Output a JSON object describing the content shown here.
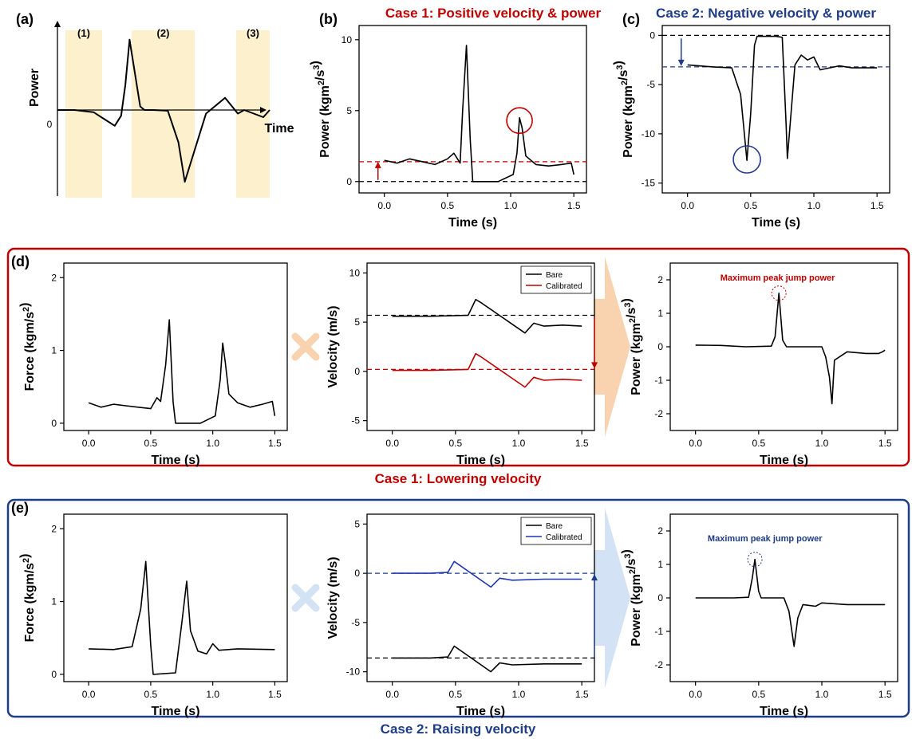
{
  "colors": {
    "red": "#c00000",
    "navy": "#1f3c88",
    "blue_series": "#1f35b5",
    "shade": "#fdf0cc",
    "peach": "#f9d2b0",
    "lightblue": "#d3e2f4"
  },
  "panels": {
    "a": {
      "letter": "(a)",
      "region_labels": [
        "(1)",
        "(2)",
        "(3)"
      ],
      "zero": "0",
      "icon": "power-schematic"
    },
    "b": {
      "letter": "(b)",
      "title": "Case 1: Positive velocity & power"
    },
    "c": {
      "letter": "(c)",
      "title": "Case 2: Negative velocity & power"
    },
    "d": {
      "letter": "(d)",
      "caption": "Case 1: Lowering velocity",
      "operator_icon": "multiply-icon",
      "arrow_icon": "arrow-right-icon"
    },
    "e": {
      "letter": "(e)",
      "caption": "Case 2: Raising velocity",
      "operator_icon": "multiply-icon",
      "arrow_icon": "arrow-right-icon"
    }
  },
  "chart_data": [
    {
      "id": "a",
      "type": "line",
      "xlabel": "Time",
      "ylabel": "Power",
      "xlim": [
        0,
        1
      ],
      "ylim": [
        -1,
        1
      ],
      "series": [
        {
          "x": [
            0,
            0.08,
            0.17,
            0.27,
            0.3,
            0.32,
            0.34,
            0.39,
            0.41,
            0.45,
            0.52,
            0.57,
            0.6,
            0.7,
            0.79,
            0.85,
            0.88,
            0.97,
            1.0
          ],
          "y": [
            0,
            0,
            -0.03,
            -0.22,
            -0.08,
            0.35,
            0.98,
            0.05,
            0,
            0,
            -0.01,
            -0.45,
            -1.0,
            -0.05,
            0.17,
            -0.05,
            0,
            -0.1,
            0
          ]
        }
      ]
    },
    {
      "id": "b",
      "type": "line",
      "title": "Case 1: Positive velocity & power",
      "xlabel": "Time (s)",
      "ylabel": "Power (kgm²/s³)",
      "xlim": [
        -0.2,
        1.6
      ],
      "ylim": [
        -0.8,
        11
      ],
      "xticks": [
        0,
        0.5,
        1.0,
        1.5
      ],
      "yticks": [
        0,
        5,
        10
      ],
      "series": [
        {
          "x": [
            0,
            0.1,
            0.2,
            0.3,
            0.4,
            0.5,
            0.55,
            0.6,
            0.62,
            0.65,
            0.68,
            0.7,
            0.9,
            1.02,
            1.05,
            1.07,
            1.09,
            1.12,
            1.2,
            1.3,
            1.4,
            1.48,
            1.5
          ],
          "y": [
            1.5,
            1.3,
            1.6,
            1.4,
            1.2,
            1.6,
            2.0,
            1.3,
            5.0,
            9.6,
            3.0,
            0,
            0,
            0.5,
            2.0,
            4.5,
            3.8,
            1.8,
            1.2,
            1.1,
            1.2,
            1.3,
            0.5
          ]
        }
      ],
      "reference_lines": [
        {
          "y": 1.4,
          "color": "red"
        },
        {
          "y": 0,
          "color": "black"
        }
      ]
    },
    {
      "id": "c",
      "type": "line",
      "title": "Case 2: Negative velocity & power",
      "xlabel": "Time (s)",
      "ylabel": "Power (kgm²/s³)",
      "xlim": [
        -0.2,
        1.6
      ],
      "ylim": [
        -16,
        1
      ],
      "xticks": [
        0,
        0.5,
        1.0,
        1.5
      ],
      "yticks": [
        0,
        -5,
        -10,
        -15
      ],
      "series": [
        {
          "x": [
            0,
            0.2,
            0.35,
            0.42,
            0.45,
            0.47,
            0.5,
            0.53,
            0.55,
            0.7,
            0.75,
            0.78,
            0.79,
            0.85,
            0.9,
            0.95,
            1.0,
            1.05,
            1.2,
            1.3,
            1.5
          ],
          "y": [
            -3.0,
            -3.2,
            -3.3,
            -6,
            -10,
            -12.7,
            -8,
            -1,
            -0.1,
            -0.1,
            -0.2,
            -9,
            -12.5,
            -3,
            -2,
            -2.5,
            -2.2,
            -3.5,
            -3.1,
            -3.3,
            -3.3
          ]
        }
      ],
      "reference_lines": [
        {
          "y": 0,
          "color": "black"
        },
        {
          "y": -3.2,
          "color": "navy"
        }
      ]
    },
    {
      "id": "d1",
      "type": "line",
      "xlabel": "Time (s)",
      "ylabel": "Force (kgm/s²)",
      "xlim": [
        -0.2,
        1.6
      ],
      "ylim": [
        -0.1,
        2.2
      ],
      "xticks": [
        0,
        0.5,
        1.0,
        1.5
      ],
      "yticks": [
        0,
        1,
        2
      ],
      "series": [
        {
          "x": [
            0,
            0.1,
            0.2,
            0.3,
            0.4,
            0.5,
            0.55,
            0.58,
            0.62,
            0.65,
            0.68,
            0.7,
            0.9,
            1.02,
            1.06,
            1.08,
            1.1,
            1.13,
            1.2,
            1.3,
            1.4,
            1.48,
            1.5
          ],
          "y": [
            0.28,
            0.22,
            0.26,
            0.24,
            0.22,
            0.2,
            0.35,
            0.3,
            0.8,
            1.42,
            0.3,
            0,
            0,
            0.1,
            0.6,
            1.1,
            0.85,
            0.4,
            0.28,
            0.22,
            0.26,
            0.3,
            0.1
          ]
        }
      ]
    },
    {
      "id": "d2",
      "type": "line",
      "xlabel": "Time (s)",
      "ylabel": "Velocity (m/s)",
      "xlim": [
        -0.2,
        1.6
      ],
      "ylim": [
        -6,
        11
      ],
      "xticks": [
        0,
        0.5,
        1.0,
        1.5
      ],
      "yticks": [
        -5,
        0,
        5,
        10
      ],
      "legend": [
        "Bare",
        "Calibrated"
      ],
      "legend_position": "top-right",
      "series": [
        {
          "name": "Bare",
          "color": "black",
          "x": [
            0,
            0.3,
            0.6,
            0.66,
            0.7,
            1.05,
            1.12,
            1.2,
            1.35,
            1.5
          ],
          "y": [
            5.6,
            5.6,
            5.7,
            7.3,
            7.0,
            3.9,
            4.9,
            4.6,
            4.7,
            4.6
          ]
        },
        {
          "name": "Calibrated",
          "color": "red",
          "x": [
            0,
            0.3,
            0.6,
            0.66,
            0.7,
            1.05,
            1.12,
            1.2,
            1.35,
            1.5
          ],
          "y": [
            0.1,
            0.1,
            0.2,
            1.8,
            1.5,
            -1.6,
            -0.6,
            -0.9,
            -0.8,
            -0.9
          ]
        }
      ],
      "reference_lines": [
        {
          "y": 5.7,
          "color": "black"
        },
        {
          "y": 0.2,
          "color": "red"
        }
      ]
    },
    {
      "id": "d3",
      "type": "line",
      "annotation": "Maximum peak jump power",
      "xlabel": "Time (s)",
      "ylabel": "Power (kgm²/s³)",
      "xlim": [
        -0.2,
        1.6
      ],
      "ylim": [
        -2.5,
        2.5
      ],
      "xticks": [
        0,
        0.5,
        1.0,
        1.5
      ],
      "yticks": [
        -2,
        -1,
        0,
        1,
        2
      ],
      "series": [
        {
          "x": [
            0,
            0.2,
            0.4,
            0.6,
            0.63,
            0.66,
            0.69,
            0.72,
            1.0,
            1.03,
            1.06,
            1.08,
            1.1,
            1.2,
            1.35,
            1.45,
            1.48,
            1.5
          ],
          "y": [
            0.05,
            0.04,
            0.0,
            0.02,
            0.3,
            1.6,
            0.2,
            0,
            0,
            -0.3,
            -0.9,
            -1.7,
            -0.4,
            -0.15,
            -0.2,
            -0.2,
            -0.15,
            -0.1
          ]
        }
      ]
    },
    {
      "id": "e1",
      "type": "line",
      "xlabel": "Time (s)",
      "ylabel": "Force (kgm/s²)",
      "xlim": [
        -0.2,
        1.6
      ],
      "ylim": [
        -0.1,
        2.2
      ],
      "xticks": [
        0,
        0.5,
        1.0,
        1.5
      ],
      "yticks": [
        0,
        1,
        2
      ],
      "series": [
        {
          "x": [
            0,
            0.2,
            0.35,
            0.42,
            0.46,
            0.5,
            0.52,
            0.7,
            0.75,
            0.79,
            0.82,
            0.88,
            0.95,
            1.0,
            1.05,
            1.2,
            1.5
          ],
          "y": [
            0.35,
            0.34,
            0.38,
            0.9,
            1.55,
            0.4,
            0,
            0.02,
            0.7,
            1.28,
            0.6,
            0.32,
            0.28,
            0.42,
            0.33,
            0.35,
            0.34
          ]
        }
      ]
    },
    {
      "id": "e2",
      "type": "line",
      "xlabel": "Time (s)",
      "ylabel": "Velocity (m/s)",
      "xlim": [
        -0.2,
        1.6
      ],
      "ylim": [
        -11,
        6
      ],
      "xticks": [
        0,
        0.5,
        1.0,
        1.5
      ],
      "yticks": [
        -10,
        -5,
        0,
        5
      ],
      "legend": [
        "Bare",
        "Calibrated"
      ],
      "legend_position": "top-right",
      "series": [
        {
          "name": "Bare",
          "color": "black",
          "x": [
            0,
            0.3,
            0.44,
            0.49,
            0.78,
            0.85,
            0.95,
            1.2,
            1.5
          ],
          "y": [
            -8.6,
            -8.6,
            -8.5,
            -7.4,
            -10.0,
            -9.1,
            -9.3,
            -9.2,
            -9.2
          ]
        },
        {
          "name": "Calibrated",
          "color": "blue",
          "x": [
            0,
            0.3,
            0.44,
            0.49,
            0.78,
            0.85,
            0.95,
            1.2,
            1.5
          ],
          "y": [
            0,
            0,
            0.1,
            1.2,
            -1.4,
            -0.5,
            -0.7,
            -0.6,
            -0.6
          ]
        }
      ],
      "reference_lines": [
        {
          "y": 0,
          "color": "navy"
        },
        {
          "y": -8.6,
          "color": "black"
        }
      ]
    },
    {
      "id": "e3",
      "type": "line",
      "annotation": "Maximum peak jump power",
      "xlabel": "Time (s)",
      "ylabel": "Power (kgm²/s³)",
      "xlim": [
        -0.2,
        1.6
      ],
      "ylim": [
        -2.5,
        2.5
      ],
      "xticks": [
        0,
        0.5,
        1.0,
        1.5
      ],
      "yticks": [
        -2,
        -1,
        0,
        1,
        2
      ],
      "series": [
        {
          "x": [
            0,
            0.3,
            0.42,
            0.45,
            0.47,
            0.5,
            0.52,
            0.7,
            0.74,
            0.78,
            0.81,
            0.85,
            0.95,
            1.0,
            1.2,
            1.5
          ],
          "y": [
            0,
            0,
            0.02,
            0.6,
            1.15,
            0.2,
            0,
            0,
            -0.4,
            -1.45,
            -0.6,
            -0.2,
            -0.25,
            -0.15,
            -0.2,
            -0.2
          ]
        }
      ]
    }
  ]
}
